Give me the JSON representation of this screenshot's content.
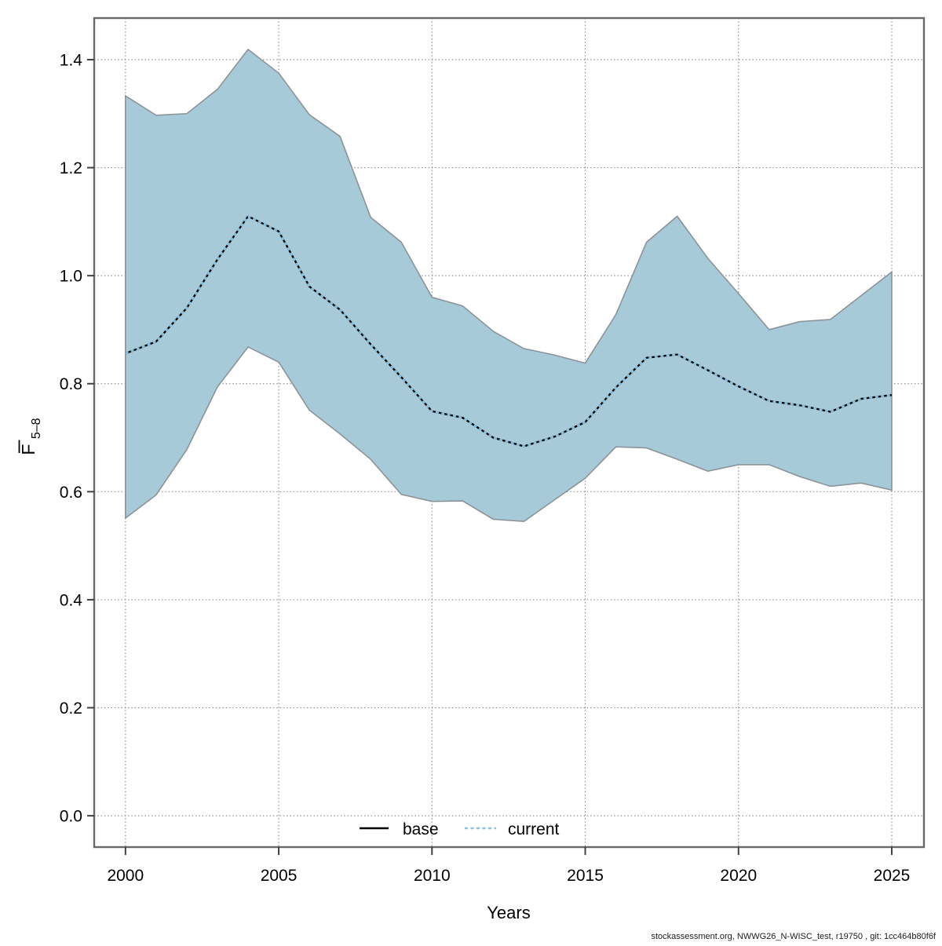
{
  "figure": {
    "footer": "stockassessment.org, NWWG26_N-WISC_test, r19750 , git: 1cc464b80f6f"
  },
  "chart_data": {
    "type": "line",
    "xlabel": "Years",
    "ylabel_main": "F",
    "ylabel_sub": "5–8",
    "grid": true,
    "legend_position": "bottom-center-inside",
    "xlim": [
      1998.98,
      2026.05
    ],
    "ylim": [
      -0.058,
      1.477
    ],
    "xticks": [
      2000,
      2005,
      2010,
      2015,
      2020,
      2025
    ],
    "xtick_labels": [
      "2000",
      "2005",
      "2010",
      "2015",
      "2020",
      "2025"
    ],
    "yticks": [
      0.0,
      0.2,
      0.4,
      0.6,
      0.8,
      1.0,
      1.2,
      1.4
    ],
    "ytick_labels": [
      "0.0",
      "0.2",
      "0.4",
      "0.6",
      "0.8",
      "1.0",
      "1.2",
      "1.4"
    ],
    "x": [
      2000,
      2001,
      2002,
      2003,
      2004,
      2005,
      2006,
      2007,
      2008,
      2009,
      2010,
      2011,
      2012,
      2013,
      2014,
      2015,
      2016,
      2017,
      2018,
      2019,
      2020,
      2021,
      2022,
      2023,
      2024,
      2025
    ],
    "series": [
      {
        "name": "base",
        "style": "solid",
        "color": "#000000",
        "values": [
          0.856,
          0.878,
          0.94,
          1.03,
          1.11,
          1.082,
          0.98,
          0.937,
          0.873,
          0.812,
          0.749,
          0.737,
          0.7,
          0.684,
          0.702,
          0.729,
          0.793,
          0.848,
          0.854,
          0.825,
          0.795,
          0.768,
          0.76,
          0.748,
          0.772,
          0.779
        ]
      },
      {
        "name": "current",
        "style": "dashed",
        "color": "#87c3e4",
        "values": [
          0.856,
          0.878,
          0.94,
          1.03,
          1.11,
          1.082,
          0.98,
          0.937,
          0.873,
          0.812,
          0.749,
          0.737,
          0.7,
          0.684,
          0.702,
          0.729,
          0.793,
          0.848,
          0.854,
          0.825,
          0.795,
          0.768,
          0.76,
          0.748,
          0.772,
          0.779
        ]
      }
    ],
    "band": {
      "name": "confidence-band",
      "fill": "#a7cad9",
      "stroke": "#8b9399",
      "upper": [
        1.333,
        1.297,
        1.3,
        1.345,
        1.419,
        1.375,
        1.298,
        1.258,
        1.108,
        1.062,
        0.96,
        0.944,
        0.897,
        0.865,
        0.853,
        0.838,
        0.928,
        1.062,
        1.11,
        1.032,
        0.967,
        0.9,
        0.915,
        0.919,
        0.963,
        1.007
      ],
      "lower": [
        0.551,
        0.594,
        0.678,
        0.794,
        0.868,
        0.84,
        0.751,
        0.707,
        0.66,
        0.595,
        0.582,
        0.583,
        0.549,
        0.545,
        0.585,
        0.625,
        0.683,
        0.681,
        0.66,
        0.638,
        0.65,
        0.65,
        0.628,
        0.61,
        0.616,
        0.603
      ]
    },
    "legend": [
      {
        "label": "base",
        "color": "#000000",
        "style": "solid"
      },
      {
        "label": "current",
        "color": "#87c3e4",
        "style": "dashed"
      }
    ]
  }
}
